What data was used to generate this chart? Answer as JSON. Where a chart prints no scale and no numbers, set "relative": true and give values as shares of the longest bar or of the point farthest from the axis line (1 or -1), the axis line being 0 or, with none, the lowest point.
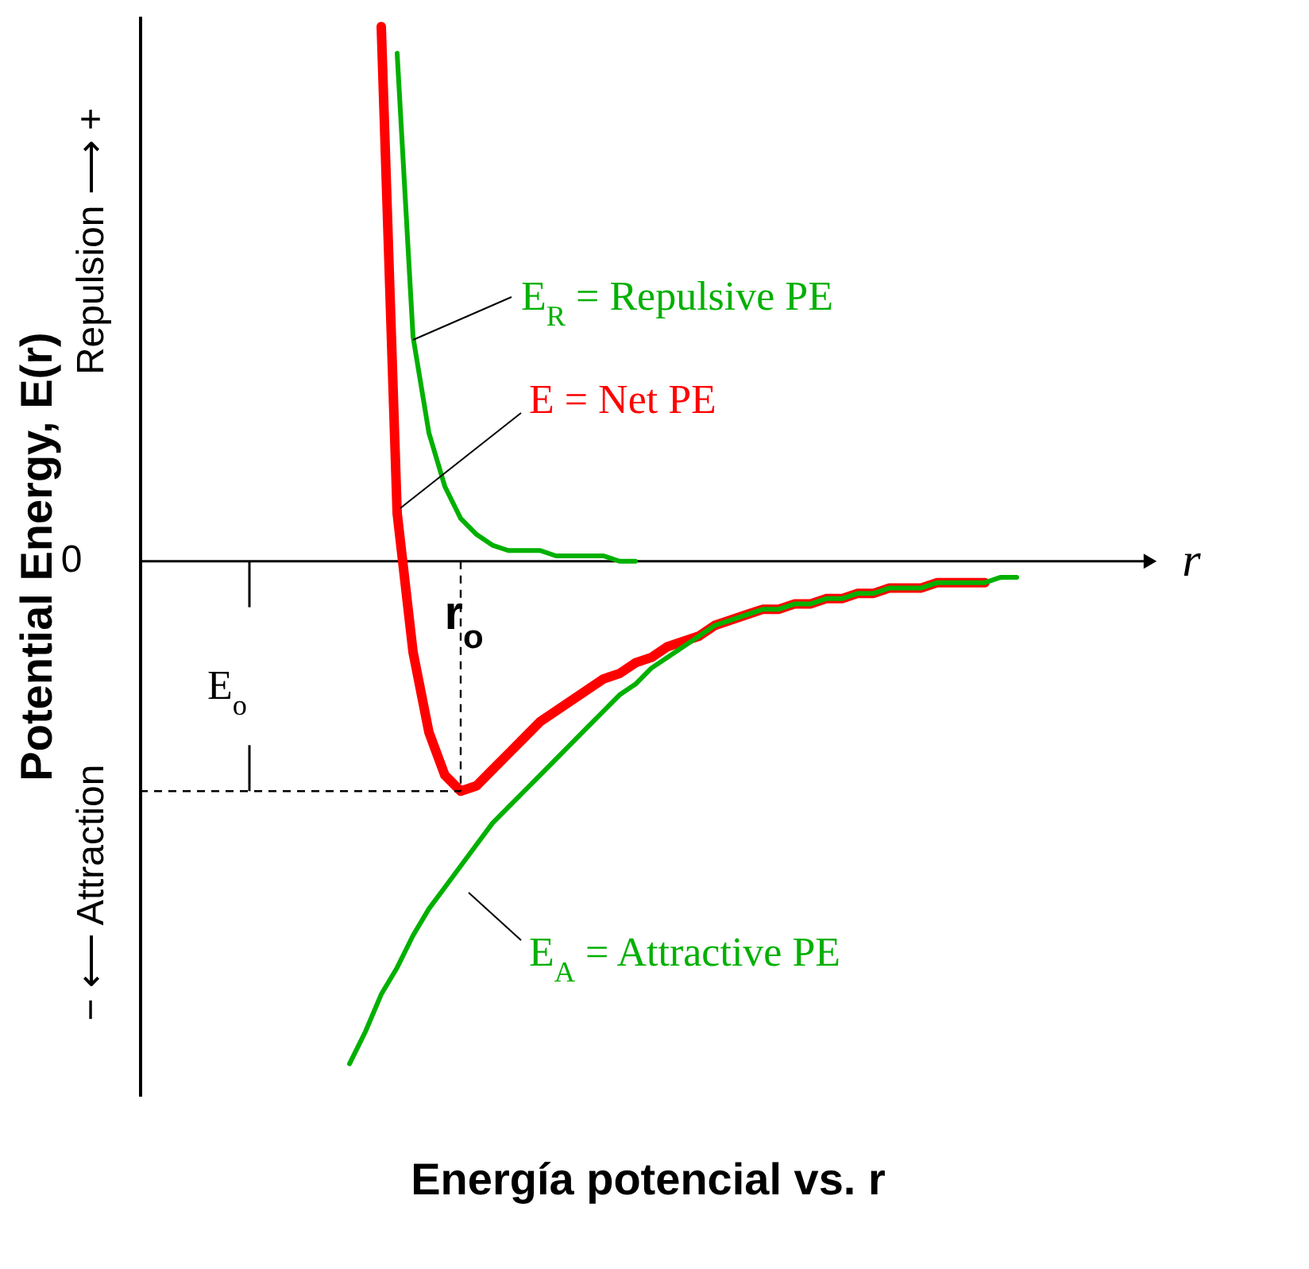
{
  "chart_data": {
    "type": "line",
    "relative": true,
    "title": "Energía potencial   vs.   r",
    "xlabel": "r",
    "ylabel": "Potential Energy, E(r)",
    "annotations": [
      "0",
      "Repulsion ⟶ +",
      "− ⟵ Attraction",
      "r$_{o}$",
      "E$_{o}$"
    ],
    "categories": [
      null,
      null,
      null,
      null,
      null,
      null,
      null,
      null,
      null,
      null,
      null,
      null,
      null,
      null,
      null,
      null,
      null,
      null,
      null,
      null,
      null,
      null,
      null,
      null,
      null,
      null,
      null,
      null,
      null,
      null,
      null,
      null,
      null,
      null,
      null,
      null,
      null,
      null,
      null,
      null,
      null,
      null,
      null,
      null,
      null,
      null,
      null,
      null,
      null,
      null,
      null,
      null,
      null,
      null,
      null,
      null,
      null,
      null,
      null,
      null,
      null,
      null,
      null,
      null
    ],
    "series": [
      {
        "name": "E$_{R}$ = Repulsive PE",
        "color": "#00b000",
        "values": [
          null,
          null,
          null,
          null,
          null,
          null,
          null,
          null,
          null,
          null,
          null,
          null,
          null,
          null,
          null,
          null,
          0.95,
          0.42,
          0.24,
          0.14,
          0.08,
          0.05,
          0.03,
          0.02,
          0.02,
          0.02,
          0.01,
          0.01,
          0.01,
          0.01,
          0.0,
          0.0,
          null,
          null,
          null,
          null,
          null,
          null,
          null,
          null,
          null,
          null,
          null,
          null,
          null,
          null,
          null,
          null,
          null,
          null,
          null,
          null,
          null,
          null,
          null,
          null,
          null,
          null,
          null,
          null,
          null,
          null,
          null,
          null
        ]
      },
      {
        "name": "E = Net  PE",
        "color": "#ff0000",
        "values": [
          null,
          null,
          null,
          null,
          null,
          null,
          null,
          null,
          null,
          null,
          null,
          null,
          null,
          null,
          null,
          1.0,
          0.09,
          -0.17,
          -0.32,
          -0.4,
          -0.43,
          -0.42,
          -0.39,
          -0.36,
          -0.33,
          -0.3,
          -0.28,
          -0.26,
          -0.24,
          -0.22,
          -0.21,
          -0.19,
          -0.18,
          -0.16,
          -0.15,
          -0.14,
          -0.12,
          -0.11,
          -0.1,
          -0.09,
          -0.09,
          -0.08,
          -0.08,
          -0.07,
          -0.07,
          -0.06,
          -0.06,
          -0.05,
          -0.05,
          -0.05,
          -0.04,
          -0.04,
          -0.04,
          -0.04,
          null,
          null,
          null,
          null,
          null,
          null,
          null,
          null,
          null,
          null
        ]
      },
      {
        "name": "E$_{A}$ = Attractive PE",
        "color": "#00b000",
        "values": [
          null,
          null,
          null,
          null,
          null,
          null,
          null,
          null,
          null,
          null,
          null,
          null,
          null,
          -0.94,
          -0.88,
          -0.81,
          -0.76,
          -0.7,
          -0.65,
          -0.61,
          -0.57,
          -0.53,
          -0.49,
          -0.46,
          -0.43,
          -0.4,
          -0.37,
          -0.34,
          -0.31,
          -0.28,
          -0.25,
          -0.23,
          -0.2,
          -0.18,
          -0.16,
          -0.14,
          -0.12,
          -0.11,
          -0.1,
          -0.09,
          -0.09,
          -0.08,
          -0.08,
          -0.07,
          -0.07,
          -0.06,
          -0.06,
          -0.05,
          -0.05,
          -0.05,
          -0.04,
          -0.04,
          -0.04,
          -0.04,
          -0.03,
          -0.03,
          null,
          null,
          null,
          null,
          null,
          null,
          null,
          null
        ]
      }
    ]
  }
}
